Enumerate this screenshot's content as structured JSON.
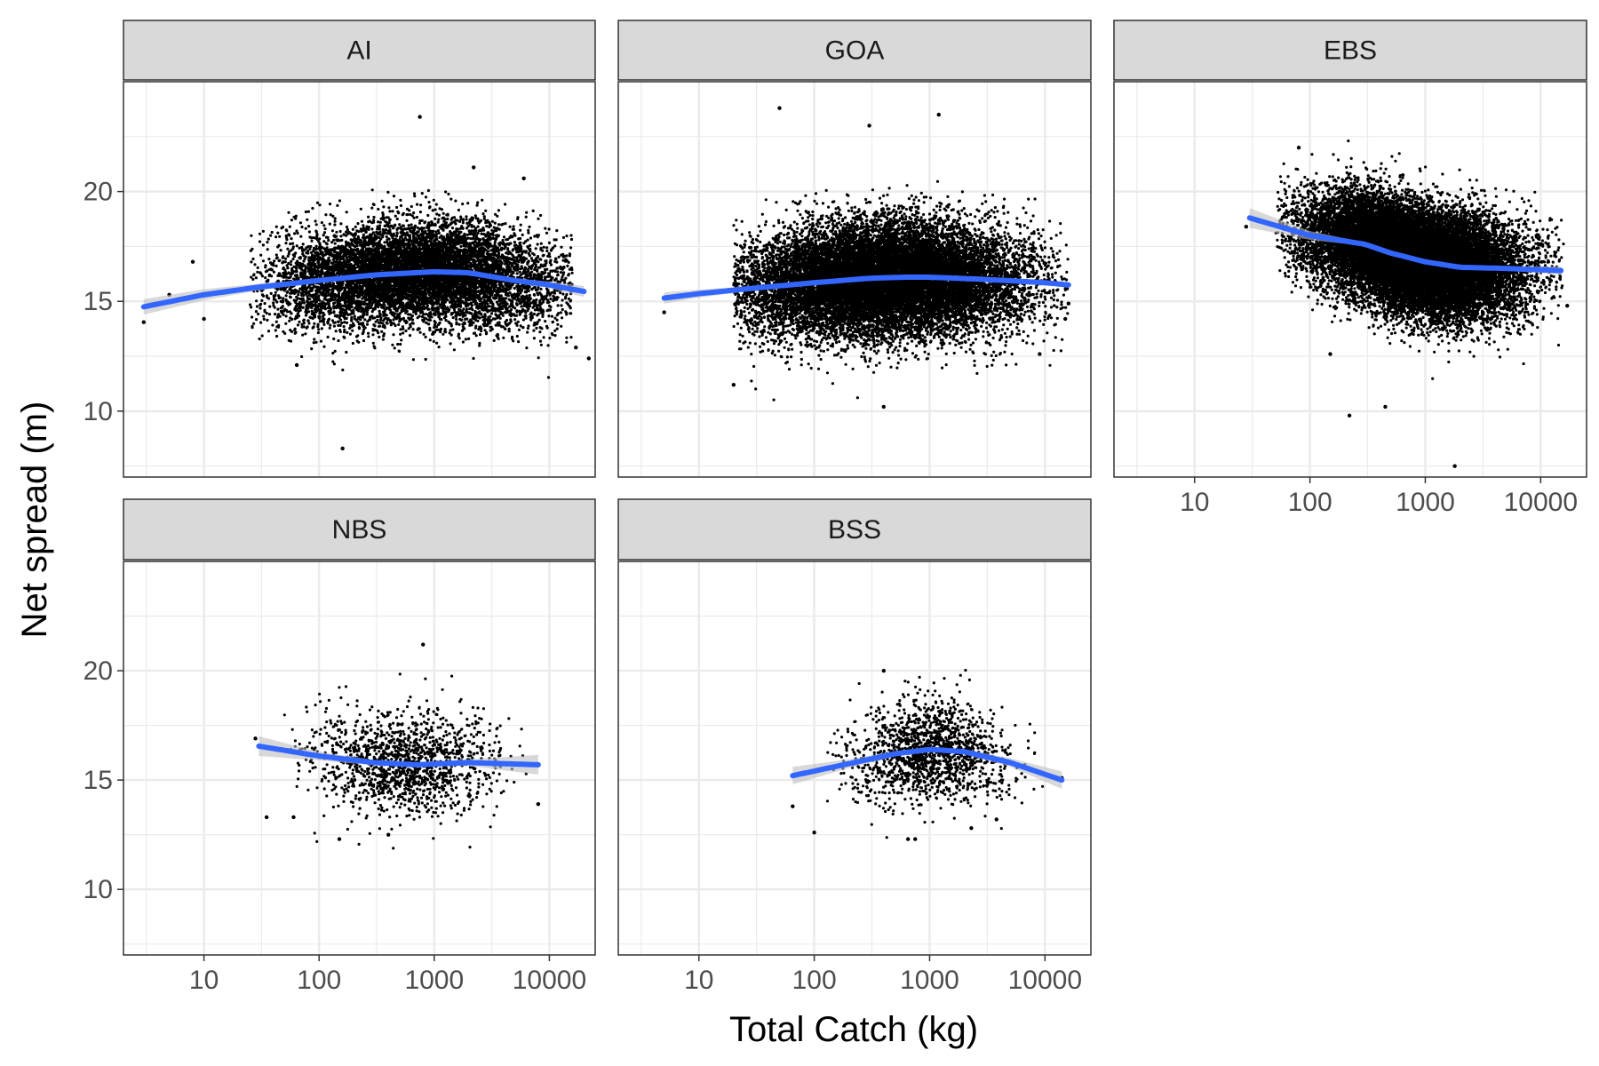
{
  "chart_data": {
    "type": "scatter",
    "xlabel": "Total Catch (kg)",
    "ylabel": "Net spread (m)",
    "x_scale": "log10",
    "xlim": [
      2,
      25000
    ],
    "ylim": [
      7,
      25
    ],
    "x_ticks": [
      10,
      100,
      1000,
      10000
    ],
    "x_tick_labels": [
      "10",
      "100",
      "1000",
      "10000"
    ],
    "x_minor_ticks": [
      3.16,
      31.6,
      316,
      3162,
      31623
    ],
    "y_ticks": [
      10,
      15,
      20
    ],
    "y_tick_labels": [
      "10",
      "15",
      "20"
    ],
    "y_minor_ticks": [
      7.5,
      12.5,
      17.5,
      22.5
    ],
    "grid": true,
    "point_color": "#000000",
    "smooth_color": "#3366FF",
    "band_color": "#BEBEBE",
    "strip_fill": "#D9D9D9",
    "panels": [
      {
        "label": "AI",
        "smooth": [
          [
            3,
            14.75
          ],
          [
            10,
            15.3
          ],
          [
            30,
            15.65
          ],
          [
            100,
            15.95
          ],
          [
            300,
            16.2
          ],
          [
            1000,
            16.35
          ],
          [
            2000,
            16.3
          ],
          [
            5000,
            15.95
          ],
          [
            10000,
            15.75
          ],
          [
            20000,
            15.45
          ]
        ],
        "band": [
          0.35,
          0.25,
          0.15,
          0.08,
          0.06,
          0.06,
          0.07,
          0.1,
          0.15,
          0.25
        ],
        "cloud": {
          "x_log_mean": 2.85,
          "x_log_sd": 0.62,
          "x_log_min": 1.4,
          "x_log_max": 4.2,
          "y_sd": 1.15,
          "n": 9000
        },
        "outliers": [
          [
            3,
            14.05
          ],
          [
            5,
            15.3
          ],
          [
            8,
            16.8
          ],
          [
            10,
            14.2
          ],
          [
            64,
            12.1
          ],
          [
            160,
            8.3
          ],
          [
            750,
            23.4
          ],
          [
            2200,
            21.1
          ],
          [
            6000,
            20.6
          ],
          [
            17000,
            12.9
          ],
          [
            22000,
            12.4
          ]
        ]
      },
      {
        "label": "GOA",
        "smooth": [
          [
            5,
            15.15
          ],
          [
            10,
            15.35
          ],
          [
            30,
            15.6
          ],
          [
            100,
            15.85
          ],
          [
            300,
            16.05
          ],
          [
            600,
            16.1
          ],
          [
            1000,
            16.1
          ],
          [
            3000,
            16.0
          ],
          [
            10000,
            15.85
          ],
          [
            16000,
            15.75
          ]
        ],
        "band": [
          0.25,
          0.18,
          0.1,
          0.06,
          0.04,
          0.04,
          0.04,
          0.05,
          0.08,
          0.12
        ],
        "cloud": {
          "x_log_mean": 2.6,
          "x_log_sd": 0.6,
          "x_log_min": 1.3,
          "x_log_max": 4.2,
          "y_sd": 1.25,
          "n": 16000
        },
        "outliers": [
          [
            5,
            14.5
          ],
          [
            20,
            11.2
          ],
          [
            50,
            23.8
          ],
          [
            300,
            23.0
          ],
          [
            400,
            10.2
          ],
          [
            1200,
            23.5
          ],
          [
            15000,
            14.2
          ],
          [
            16000,
            14.9
          ],
          [
            9000,
            12.6
          ]
        ]
      },
      {
        "label": "EBS",
        "smooth": [
          [
            30,
            18.8
          ],
          [
            100,
            18.0
          ],
          [
            300,
            17.6
          ],
          [
            500,
            17.2
          ],
          [
            1000,
            16.8
          ],
          [
            2000,
            16.55
          ],
          [
            5000,
            16.5
          ],
          [
            15000,
            16.4
          ]
        ],
        "band": [
          0.45,
          0.2,
          0.08,
          0.05,
          0.04,
          0.05,
          0.08,
          0.2
        ],
        "cloud": {
          "x_log_mean": 2.9,
          "x_log_sd": 0.45,
          "x_log_min": 1.7,
          "x_log_max": 4.2,
          "y_sd": 1.2,
          "n": 20000
        },
        "outliers": [
          [
            28,
            18.4
          ],
          [
            80,
            22.0
          ],
          [
            150,
            12.6
          ],
          [
            220,
            9.8
          ],
          [
            450,
            10.2
          ],
          [
            1800,
            7.5
          ],
          [
            17000,
            14.8
          ],
          [
            12000,
            16.0
          ]
        ]
      },
      {
        "label": "NBS",
        "smooth": [
          [
            30,
            16.55
          ],
          [
            100,
            16.1
          ],
          [
            300,
            15.8
          ],
          [
            700,
            15.7
          ],
          [
            2000,
            15.8
          ],
          [
            8000,
            15.7
          ]
        ],
        "band": [
          0.45,
          0.2,
          0.12,
          0.1,
          0.15,
          0.45
        ],
        "cloud": {
          "x_log_mean": 2.75,
          "x_log_sd": 0.4,
          "x_log_min": 1.7,
          "x_log_max": 3.8,
          "y_sd": 1.15,
          "n": 1400
        },
        "outliers": [
          [
            28,
            16.9
          ],
          [
            35,
            13.3
          ],
          [
            60,
            13.3
          ],
          [
            150,
            12.3
          ],
          [
            400,
            12.5
          ],
          [
            800,
            21.2
          ],
          [
            8000,
            13.9
          ]
        ]
      },
      {
        "label": "BSS",
        "smooth": [
          [
            65,
            15.2
          ],
          [
            200,
            15.75
          ],
          [
            500,
            16.2
          ],
          [
            1000,
            16.4
          ],
          [
            2000,
            16.3
          ],
          [
            5000,
            15.8
          ],
          [
            14000,
            15.0
          ]
        ],
        "band": [
          0.4,
          0.2,
          0.12,
          0.1,
          0.12,
          0.2,
          0.4
        ],
        "cloud": {
          "x_log_mean": 3.0,
          "x_log_sd": 0.35,
          "x_log_min": 2.0,
          "x_log_max": 4.1,
          "y_sd": 1.1,
          "n": 1500
        },
        "outliers": [
          [
            65,
            13.8
          ],
          [
            100,
            12.6
          ],
          [
            650,
            12.3
          ],
          [
            750,
            12.3
          ],
          [
            400,
            20.0
          ],
          [
            14000,
            15.1
          ],
          [
            2300,
            12.8
          ],
          [
            3800,
            13.2
          ]
        ]
      }
    ]
  }
}
